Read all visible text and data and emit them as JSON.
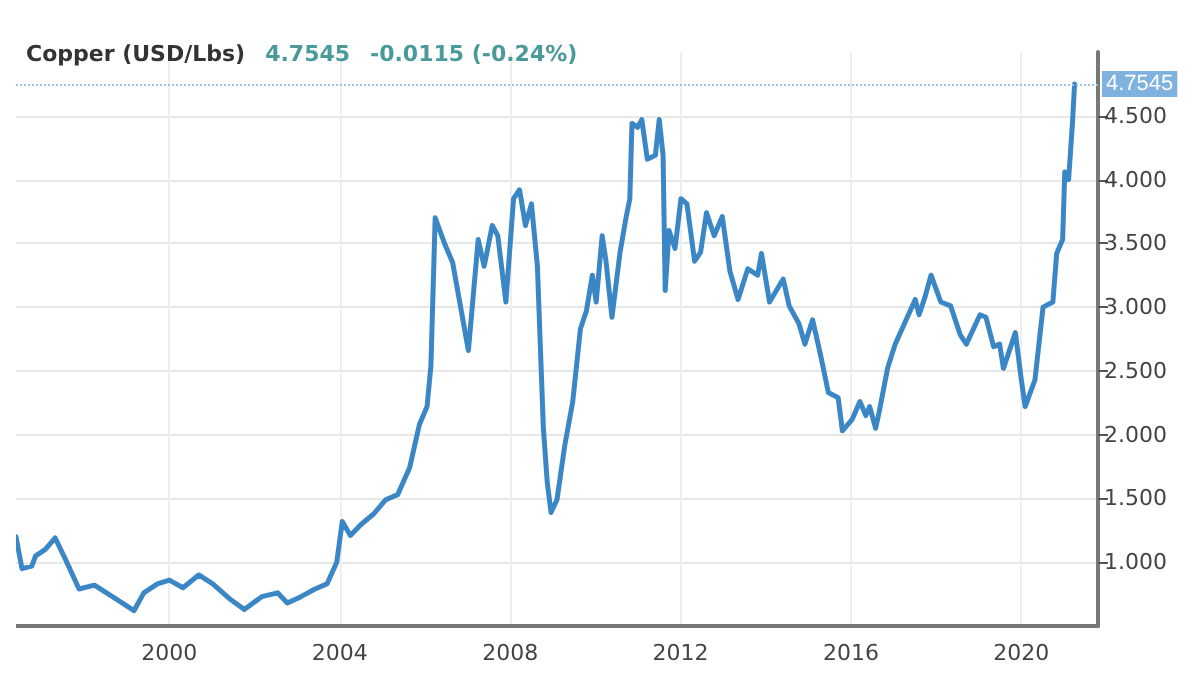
{
  "chart_data": {
    "type": "line",
    "title": "Copper (USD/Lbs)",
    "annotations": [
      "4.7545",
      "-0.0115 (-0.24%)"
    ],
    "x": [
      1996.4,
      1996.54,
      1996.77,
      1996.86,
      1997.09,
      1997.32,
      1997.55,
      1997.88,
      1998.24,
      1998.71,
      1999.17,
      1999.4,
      1999.72,
      2000.0,
      2000.32,
      2000.69,
      2001.02,
      2001.39,
      2001.76,
      2002.17,
      2002.54,
      2002.77,
      2003.09,
      2003.42,
      2003.7,
      2003.93,
      2004.06,
      2004.25,
      2004.48,
      2004.8,
      2005.08,
      2005.36,
      2005.64,
      2005.87,
      2006.05,
      2006.14,
      2006.24,
      2006.47,
      2006.65,
      2007.02,
      2007.25,
      2007.39,
      2007.58,
      2007.71,
      2007.9,
      2008.08,
      2008.22,
      2008.36,
      2008.5,
      2008.64,
      2008.78,
      2008.87,
      2008.96,
      2009.1,
      2009.28,
      2009.47,
      2009.65,
      2009.79,
      2009.93,
      2010.02,
      2010.16,
      2010.25,
      2010.39,
      2010.58,
      2010.72,
      2010.81,
      2010.86,
      2010.99,
      2011.09,
      2011.22,
      2011.41,
      2011.5,
      2011.59,
      2011.64,
      2011.73,
      2011.87,
      2012.01,
      2012.15,
      2012.33,
      2012.47,
      2012.61,
      2012.79,
      2012.98,
      2013.16,
      2013.35,
      2013.58,
      2013.81,
      2013.9,
      2014.09,
      2014.41,
      2014.55,
      2014.78,
      2014.92,
      2015.1,
      2015.29,
      2015.47,
      2015.7,
      2015.8,
      2016.03,
      2016.21,
      2016.35,
      2016.44,
      2016.58,
      2016.67,
      2016.86,
      2017.04,
      2017.51,
      2017.6,
      2017.74,
      2017.88,
      2018.11,
      2018.34,
      2018.57,
      2018.71,
      2019.03,
      2019.17,
      2019.35,
      2019.49,
      2019.58,
      2019.86,
      2020.0,
      2020.09,
      2020.32,
      2020.51,
      2020.74,
      2020.83,
      2020.97,
      2021.02,
      2021.11,
      2021.2,
      2021.25
    ],
    "series": [
      {
        "color": "#3b87c6",
        "values": [
          1.2,
          0.95,
          0.97,
          1.05,
          1.1,
          1.19,
          1.03,
          0.79,
          0.82,
          0.72,
          0.62,
          0.76,
          0.83,
          0.86,
          0.8,
          0.9,
          0.83,
          0.72,
          0.63,
          0.73,
          0.76,
          0.68,
          0.73,
          0.79,
          0.83,
          1.0,
          1.32,
          1.21,
          1.29,
          1.38,
          1.49,
          1.53,
          1.74,
          2.08,
          2.22,
          2.54,
          3.7,
          3.49,
          3.35,
          2.66,
          3.53,
          3.32,
          3.64,
          3.56,
          3.04,
          3.85,
          3.92,
          3.64,
          3.81,
          3.32,
          2.05,
          1.63,
          1.39,
          1.49,
          1.91,
          2.26,
          2.83,
          2.97,
          3.25,
          3.04,
          3.56,
          3.36,
          2.92,
          3.43,
          3.7,
          3.85,
          4.44,
          4.41,
          4.47,
          4.16,
          4.19,
          4.47,
          4.19,
          3.13,
          3.6,
          3.46,
          3.85,
          3.81,
          3.36,
          3.43,
          3.74,
          3.56,
          3.71,
          3.28,
          3.06,
          3.3,
          3.25,
          3.42,
          3.04,
          3.22,
          3.01,
          2.87,
          2.71,
          2.9,
          2.62,
          2.33,
          2.29,
          2.03,
          2.12,
          2.26,
          2.15,
          2.22,
          2.05,
          2.19,
          2.52,
          2.71,
          3.06,
          2.94,
          3.08,
          3.25,
          3.04,
          3.01,
          2.78,
          2.71,
          2.94,
          2.92,
          2.69,
          2.71,
          2.52,
          2.8,
          2.43,
          2.22,
          2.43,
          3.0,
          3.04,
          3.42,
          3.53,
          4.06,
          4.0,
          4.44,
          4.75
        ]
      }
    ],
    "xlim": [
      1996.4,
      2021.8
    ],
    "xticks": [
      2000,
      2004,
      2008,
      2012,
      2016,
      2020
    ],
    "ylim": [
      0.5,
      5.0
    ],
    "yticks": [
      {
        "value": 1,
        "label": "1.000"
      },
      {
        "value": 1.5,
        "label": "1.500"
      },
      {
        "value": 2,
        "label": "2.000"
      },
      {
        "value": 2.5,
        "label": "2.500"
      },
      {
        "value": 3,
        "label": "3.000"
      },
      {
        "value": 3.5,
        "label": "3.500"
      },
      {
        "value": 4,
        "label": "4.000"
      },
      {
        "value": 4.5,
        "label": "4.500"
      }
    ],
    "ref_lines": [
      {
        "axis": "y",
        "value": 4.7545,
        "label": "4.7545",
        "color": "#9cc3e6",
        "line_style": "dotted"
      }
    ],
    "grid": true,
    "marker": "none",
    "line_style": "solid"
  }
}
